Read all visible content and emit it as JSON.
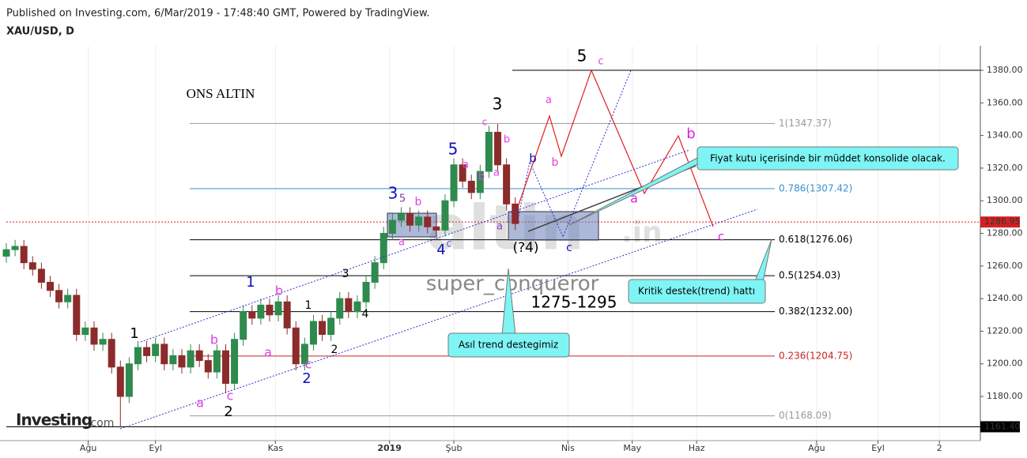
{
  "chart_data": {
    "type": "candlestick",
    "header": "Published on Investing.com, 6/Mar/2019 - 17:48:40 GMT, Powered by TradingView.",
    "title": "XAU/USD, D",
    "xlim": [
      0,
      333
    ],
    "xticks": [
      {
        "value": 28,
        "label": "Ağu"
      },
      {
        "value": 51,
        "label": "Eyl"
      },
      {
        "value": 92,
        "label": "Kas"
      },
      {
        "value": 131,
        "label": "2019"
      },
      {
        "value": 153,
        "label": "Şub"
      },
      {
        "value": 192,
        "label": "Nis"
      },
      {
        "value": 214,
        "label": "May"
      },
      {
        "value": 236,
        "label": "Haz"
      },
      {
        "value": 277,
        "label": "Ağu"
      },
      {
        "value": 298,
        "label": "Eyl"
      },
      {
        "value": 319,
        "label": "2"
      }
    ],
    "ylim": [
      1152.9,
      1395
    ],
    "yticks": [
      {
        "value": 1180,
        "label": "1180.00"
      },
      {
        "value": 1200,
        "label": "1200.00"
      },
      {
        "value": 1220,
        "label": "1220.00"
      },
      {
        "value": 1240,
        "label": "1240.00"
      },
      {
        "value": 1260,
        "label": "1260.00"
      },
      {
        "value": 1280,
        "label": "1280.00"
      },
      {
        "value": 1300,
        "label": "1300.00"
      },
      {
        "value": 1320,
        "label": "1320.00"
      },
      {
        "value": 1340,
        "label": "1340.00"
      },
      {
        "value": 1360,
        "label": "1360.00"
      },
      {
        "value": 1380,
        "label": "1380.00"
      }
    ],
    "grid": true,
    "up_color": "#2f8a4e",
    "down_color": "#8c2b2b",
    "x": [
      0,
      3,
      6,
      9,
      12,
      15,
      18,
      21,
      24,
      27,
      30,
      33,
      36,
      39,
      42,
      45,
      48,
      51,
      54,
      57,
      60,
      63,
      66,
      69,
      72,
      75,
      78,
      81,
      84,
      87,
      90,
      93,
      96,
      99,
      102,
      105,
      108,
      111,
      114,
      117,
      120,
      123,
      126,
      129,
      132,
      135,
      138,
      141,
      144,
      147,
      150,
      153,
      156,
      159,
      162,
      165,
      168,
      171,
      174
    ],
    "open": [
      1266,
      1270,
      1272,
      1262,
      1258,
      1250,
      1245,
      1238,
      1242,
      1218,
      1222,
      1212,
      1215,
      1198,
      1180,
      1200,
      1210,
      1205,
      1212,
      1200,
      1205,
      1198,
      1208,
      1202,
      1195,
      1208,
      1188,
      1215,
      1232,
      1228,
      1236,
      1230,
      1238,
      1222,
      1200,
      1212,
      1226,
      1218,
      1228,
      1240,
      1232,
      1238,
      1250,
      1262,
      1280,
      1288,
      1292,
      1285,
      1290,
      1284,
      1282,
      1300,
      1322,
      1312,
      1305,
      1318,
      1342,
      1322,
      1298
    ],
    "high": [
      1274,
      1276,
      1276,
      1266,
      1262,
      1254,
      1249,
      1246,
      1246,
      1226,
      1226,
      1219,
      1219,
      1202,
      1204,
      1214,
      1214,
      1216,
      1216,
      1209,
      1209,
      1212,
      1212,
      1206,
      1212,
      1212,
      1219,
      1236,
      1236,
      1240,
      1240,
      1242,
      1242,
      1226,
      1216,
      1230,
      1230,
      1232,
      1244,
      1244,
      1242,
      1254,
      1266,
      1284,
      1292,
      1296,
      1296,
      1294,
      1294,
      1288,
      1304,
      1326,
      1326,
      1316,
      1322,
      1346,
      1347,
      1326,
      1302
    ],
    "low": [
      1262,
      1266,
      1258,
      1254,
      1246,
      1241,
      1234,
      1234,
      1214,
      1214,
      1208,
      1208,
      1194,
      1161,
      1176,
      1196,
      1201,
      1201,
      1196,
      1196,
      1194,
      1194,
      1198,
      1191,
      1191,
      1182,
      1184,
      1211,
      1224,
      1224,
      1226,
      1226,
      1218,
      1196,
      1196,
      1208,
      1214,
      1214,
      1224,
      1228,
      1228,
      1234,
      1246,
      1258,
      1276,
      1284,
      1281,
      1281,
      1280,
      1278,
      1278,
      1296,
      1308,
      1301,
      1301,
      1314,
      1318,
      1294,
      1282
    ],
    "close": [
      1270,
      1272,
      1262,
      1258,
      1250,
      1245,
      1238,
      1242,
      1218,
      1222,
      1212,
      1215,
      1198,
      1180,
      1200,
      1210,
      1205,
      1212,
      1200,
      1205,
      1198,
      1208,
      1202,
      1195,
      1208,
      1188,
      1215,
      1232,
      1228,
      1236,
      1230,
      1238,
      1222,
      1200,
      1212,
      1226,
      1218,
      1228,
      1240,
      1232,
      1238,
      1250,
      1262,
      1280,
      1288,
      1292,
      1285,
      1290,
      1284,
      1282,
      1300,
      1322,
      1312,
      1305,
      1318,
      1342,
      1322,
      1298,
      1286
    ],
    "levels": [
      {
        "value": 1347.37,
        "label": "1(1347.37)",
        "color": "#999999"
      },
      {
        "value": 1307.42,
        "label": "0.786(1307.42)",
        "color": "#3a8fd0"
      },
      {
        "value": 1276.06,
        "label": "0.618(1276.06)",
        "color": "#000000"
      },
      {
        "value": 1254.03,
        "label": "0.5(1254.03)",
        "color": "#000000"
      },
      {
        "value": 1232.0,
        "label": "0.382(1232.00)",
        "color": "#000000"
      },
      {
        "value": 1204.75,
        "label": "0.236(1204.75)",
        "color": "#cc2222"
      },
      {
        "value": 1168.09,
        "label": "0(1168.09)",
        "color": "#999999"
      }
    ],
    "resistance": 1380,
    "price_lines": [
      {
        "value": 1286.95,
        "label": "1286.95",
        "color": "#d42020"
      },
      {
        "value": 1161.4,
        "label": "1161.40",
        "color": "#000000"
      }
    ],
    "annotations": [
      {
        "text": "ONS ALTIN",
        "color": "#000000"
      },
      {
        "text": "5",
        "color": "#000000"
      },
      {
        "text": "c",
        "color": "#e040e0"
      },
      {
        "text": "3",
        "color": "#000000"
      },
      {
        "text": "a",
        "color": "#e040e0"
      },
      {
        "text": "b",
        "color": "#e040e0"
      },
      {
        "text": "c",
        "color": "#e040e0"
      },
      {
        "text": "b",
        "color": "#e040e0"
      },
      {
        "text": "a",
        "color": "#e040e0"
      },
      {
        "text": "a",
        "color": "#e040e0"
      },
      {
        "text": "b",
        "color": "#e040e0"
      },
      {
        "text": "5",
        "color": "#1010c0"
      },
      {
        "text": "3",
        "color": "#1010c0"
      },
      {
        "text": "5",
        "color": "#8040a0"
      },
      {
        "text": "b",
        "color": "#e040e0"
      },
      {
        "text": "a",
        "color": "#e040e0"
      },
      {
        "text": "4",
        "color": "#1010c0"
      },
      {
        "text": "c",
        "color": "#6060e0"
      },
      {
        "text": "a",
        "color": "#8040c0"
      },
      {
        "text": "b",
        "color": "#1010c0"
      },
      {
        "text": "c",
        "color": "#1010c0"
      },
      {
        "text": "a",
        "color": "#e020e0"
      },
      {
        "text": "b",
        "color": "#e020e0"
      },
      {
        "text": "c",
        "color": "#e020e0"
      },
      {
        "text": "(?4)",
        "color": "#000000"
      },
      {
        "text": "1",
        "color": "#1010c0"
      },
      {
        "text": "b",
        "color": "#e040e0"
      },
      {
        "text": "a",
        "color": "#e040e0"
      },
      {
        "text": "c",
        "color": "#e040e0"
      },
      {
        "text": "2",
        "color": "#1010c0"
      },
      {
        "text": "3",
        "color": "#000000"
      },
      {
        "text": "1",
        "color": "#000000"
      },
      {
        "text": "4",
        "color": "#000000"
      },
      {
        "text": "2",
        "color": "#000000"
      },
      {
        "text": "1",
        "color": "#000000"
      },
      {
        "text": "b",
        "color": "#e040e0"
      },
      {
        "text": "a",
        "color": "#e040e0"
      },
      {
        "text": "c",
        "color": "#e040e0"
      },
      {
        "text": "2",
        "color": "#000000"
      },
      {
        "text": "super_conqueror",
        "color": "#888888"
      },
      {
        "text": "1275-1295",
        "color": "#000000"
      }
    ],
    "watermark": [
      "altin",
      ".in"
    ],
    "callouts": [
      "Fiyat kutu içerisinde bir müddet konsolide olacak.",
      "Kritik destek(trend) hattı",
      "Asıl trend destegimiz"
    ],
    "logo": [
      "Investing",
      ".com"
    ]
  }
}
